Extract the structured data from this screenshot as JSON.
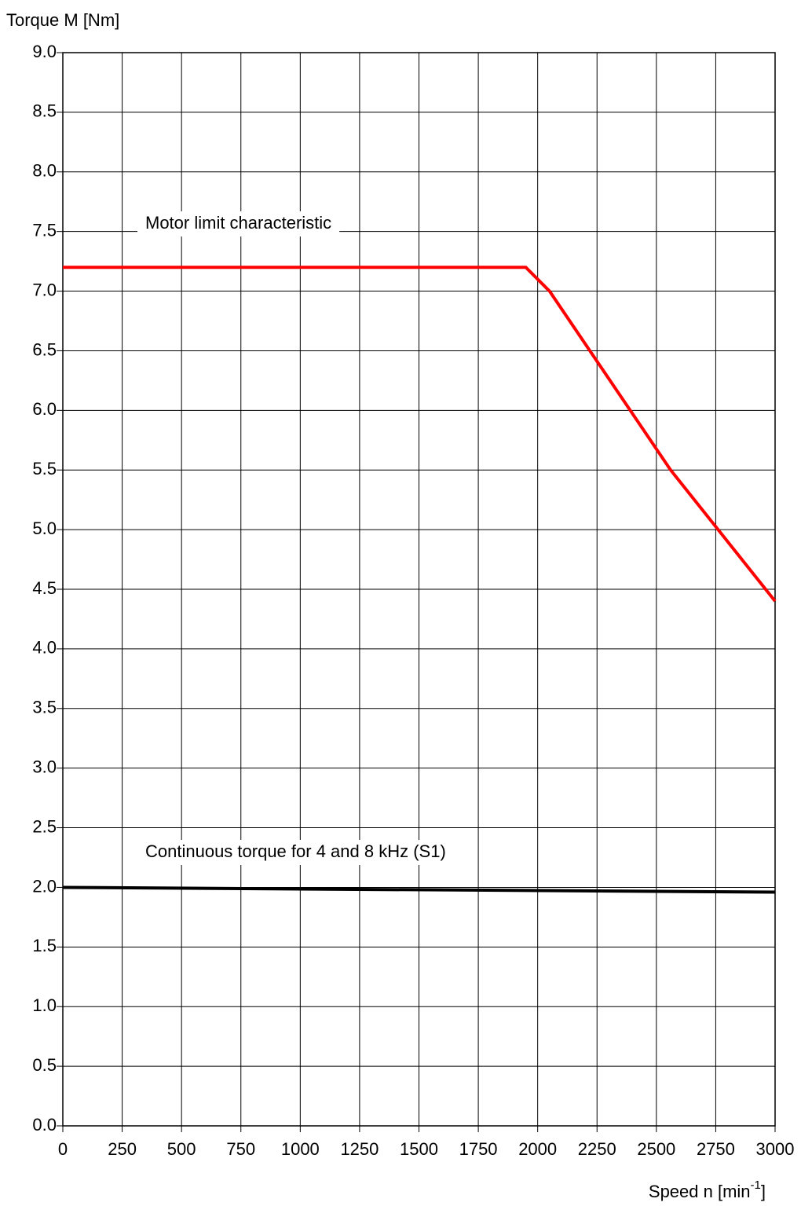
{
  "chart_data": {
    "type": "line",
    "ylabel": "Torque M [Nm]",
    "xlabel": [
      "Speed n [min",
      "-1",
      "]"
    ],
    "series": [
      {
        "name": "Motor limit characteristic",
        "color": "#ff0000",
        "x": [
          0,
          1950,
          2050,
          2560,
          3000
        ],
        "values": [
          7.2,
          7.2,
          7.0,
          5.5,
          4.4
        ]
      },
      {
        "name": "Continuous torque for 4 and 8 kHz (S1)",
        "color": "#000000",
        "x": [
          0,
          3000
        ],
        "values": [
          2.0,
          1.96
        ]
      }
    ],
    "xlim": [
      0,
      3000
    ],
    "xticks": [
      0,
      250,
      500,
      750,
      1000,
      1250,
      1500,
      1750,
      2000,
      2250,
      2500,
      2750,
      3000
    ],
    "ylim": [
      0,
      9
    ],
    "yticks": [
      {
        "value": 0,
        "label": "0.0"
      },
      0.5,
      {
        "value": 1,
        "label": "1.0"
      },
      1.5,
      {
        "value": 2,
        "label": "2.0"
      },
      2.5,
      {
        "value": 3,
        "label": "3.0"
      },
      3.5,
      {
        "value": 4,
        "label": "4.0"
      },
      4.5,
      {
        "value": 5,
        "label": "5.0"
      },
      5.5,
      {
        "value": 6,
        "label": "6.0"
      },
      6.5,
      {
        "value": 7,
        "label": "7.0"
      },
      7.5,
      {
        "value": 8,
        "label": "8.0"
      },
      8.5,
      {
        "value": 9,
        "label": "9.0"
      }
    ],
    "grid": true
  }
}
